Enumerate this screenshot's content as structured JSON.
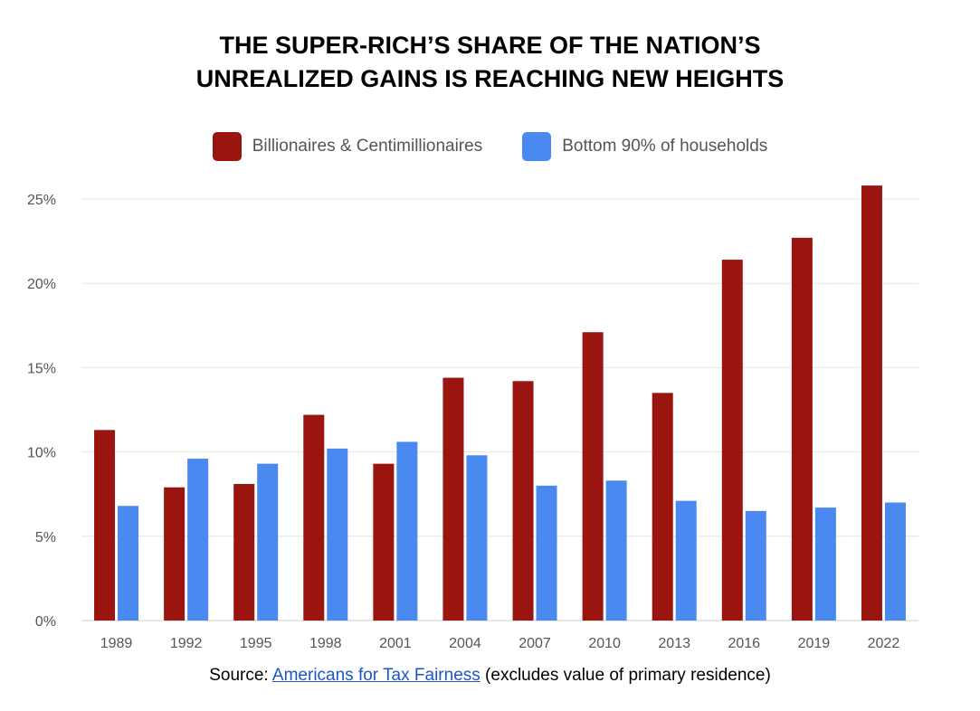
{
  "title_lines": [
    "THE SUPER-RICH’S SHARE OF THE NATION’S",
    "UNREALIZED GAINS IS REACHING NEW HEIGHTS"
  ],
  "legend": [
    {
      "label": "Billionaires & Centimillionaires",
      "color": "#9b1510"
    },
    {
      "label": "Bottom 90% of households",
      "color": "#4a8af0"
    }
  ],
  "source": {
    "prefix": "Source: ",
    "link_text": "Americans for Tax Fairness",
    "suffix": " (excludes value of primary residence)"
  },
  "chart_data": {
    "type": "bar",
    "categories": [
      "1989",
      "1992",
      "1995",
      "1998",
      "2001",
      "2004",
      "2007",
      "2010",
      "2013",
      "2016",
      "2019",
      "2022"
    ],
    "series": [
      {
        "name": "Billionaires & Centimillionaires",
        "color": "#9b1510",
        "values": [
          11.3,
          7.9,
          8.1,
          12.2,
          9.3,
          14.4,
          14.2,
          17.1,
          13.5,
          21.4,
          22.7,
          25.8
        ]
      },
      {
        "name": "Bottom 90% of households",
        "color": "#4a8af0",
        "values": [
          6.8,
          9.6,
          9.3,
          10.2,
          10.6,
          9.8,
          8.0,
          8.3,
          7.1,
          6.5,
          6.7,
          7.0
        ]
      }
    ],
    "yticks": [
      0,
      5,
      10,
      15,
      20,
      25
    ],
    "ytick_labels": [
      "0%",
      "5%",
      "10%",
      "15%",
      "20%",
      "25%"
    ],
    "ylim": [
      0,
      25
    ],
    "grid": true,
    "legend_position": "top-center"
  }
}
